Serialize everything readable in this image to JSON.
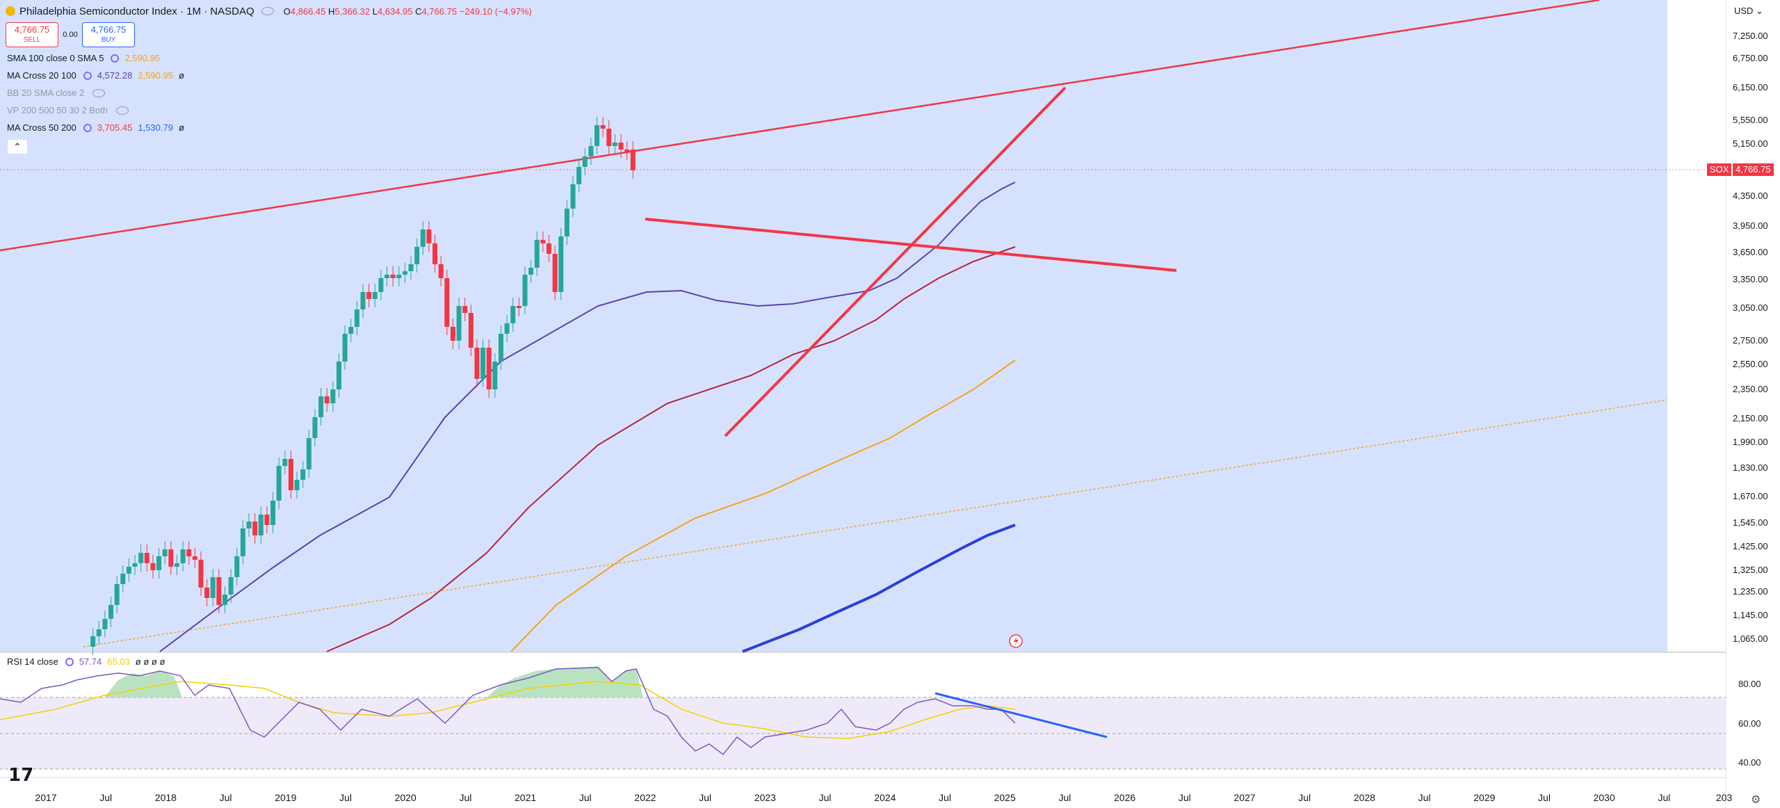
{
  "header": {
    "symbol": "Philadelphia Semiconductor Index · 1M · NASDAQ",
    "open_label": "O",
    "open": "4,866.45",
    "high_label": "H",
    "high": "5,366.32",
    "low_label": "L",
    "low": "4,634.95",
    "close_label": "C",
    "close": "4,766.75",
    "change": "−249.10 (−4.97%)"
  },
  "trade": {
    "sell_price": "4,766.75",
    "sell_label": "SELL",
    "spread": "0.00",
    "buy_price": "4,766.75",
    "buy_label": "BUY"
  },
  "indicators": [
    {
      "label": "SMA 100 close 0 SMA 5",
      "v1": "2,590.95",
      "v1_color": "#f7a21b",
      "v2": "",
      "v2_color": "",
      "flag": "",
      "hidden": false
    },
    {
      "label": "MA Cross 20 100",
      "v1": "4,572.28",
      "v1_color": "#5b3fb5",
      "v2": "2,590.95",
      "v2_color": "#f7a21b",
      "flag": "ø",
      "hidden": false
    },
    {
      "label": "BB 20 SMA close 2",
      "v1": "",
      "v1_color": "",
      "v2": "",
      "v2_color": "",
      "flag": "",
      "hidden": true
    },
    {
      "label": "VP 200 500 50 30 2 Both",
      "v1": "",
      "v1_color": "",
      "v2": "",
      "v2_color": "",
      "flag": "",
      "hidden": true
    },
    {
      "label": "MA Cross 50 200",
      "v1": "3,705.45",
      "v1_color": "#f23645",
      "v2": "1,530.79",
      "v2_color": "#2962ff",
      "flag": "ø",
      "hidden": false
    }
  ],
  "collapse_icon": "chevron-up-icon",
  "rsi": {
    "label": "RSI 14 close",
    "v1": "57.74",
    "v1_color": "#7e57c2",
    "v2": "65.03",
    "v2_color": "#f5d000",
    "flags": "ø ø ø ø"
  },
  "price_axis": {
    "currency": "USD",
    "labels": [
      "7,250.00",
      "6,750.00",
      "6,150.00",
      "5,550.00",
      "5,150.00",
      "4,350.00",
      "3,950.00",
      "3,650.00",
      "3,350.00",
      "3,050.00",
      "2,750.00",
      "2,550.00",
      "2,350.00",
      "2,150.00",
      "1,990.00",
      "1,830.00",
      "1,670.00",
      "1,545.00",
      "1,425.00",
      "1,325.00",
      "1,235.00",
      "1,145.00",
      "1,065.00"
    ],
    "last_symbol": "SOX",
    "last_price": "4,766.75"
  },
  "rsi_axis": [
    "80.00",
    "60.00",
    "40.00"
  ],
  "time_axis": [
    "2017",
    "Jul",
    "2018",
    "Jul",
    "2019",
    "Jul",
    "2020",
    "Jul",
    "2021",
    "Jul",
    "2022",
    "Jul",
    "2023",
    "Jul",
    "2024",
    "Jul",
    "2025",
    "Jul",
    "2026",
    "Jul",
    "2027",
    "Jul",
    "2028",
    "Jul",
    "2029",
    "Jul",
    "2030",
    "Jul",
    "203"
  ],
  "colors": {
    "up": "#26a69a",
    "down": "#f23645",
    "bg_zone": "#d6e2fd",
    "rsi_zone": "#efeaf9"
  },
  "icons": [
    "tradingview-logo-icon",
    "gear-icon",
    "eye-hidden-icon",
    "lightning-icon",
    "settings-icon"
  ]
}
